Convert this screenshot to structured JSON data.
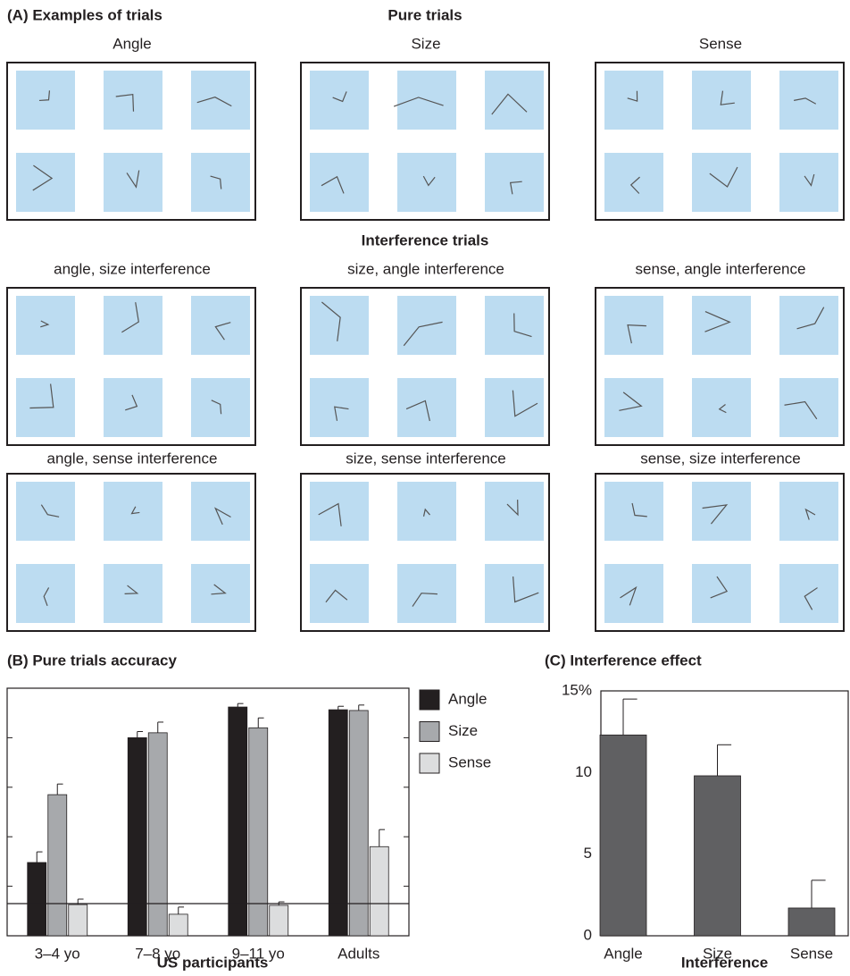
{
  "panel_a": {
    "title": "(A) Examples of trials",
    "pure_heading": "Pure trials",
    "pure_labels": [
      "Angle",
      "Size",
      "Sense"
    ],
    "interference_heading": "Interference trials",
    "interference_labels": [
      "angle, size interference",
      "size, angle interference",
      "sense, angle interference",
      "angle, sense interference",
      "size, sense interference",
      "sense, size interference"
    ]
  },
  "chart_data": [
    {
      "type": "bar",
      "title": "(B) Pure trials accuracy",
      "x_label": "US participants",
      "categories": [
        "3–4 yo",
        "7–8 yo",
        "9–11 yo",
        "Adults"
      ],
      "series": [
        {
          "name": "Angle",
          "color": "#231f20",
          "values": [
            29.6,
            80,
            92.4,
            91.3
          ],
          "errors": [
            4.3,
            2.5,
            1.4,
            1.4
          ]
        },
        {
          "name": "Size",
          "color": "#a7a9ac",
          "values": [
            57,
            82,
            84,
            91
          ],
          "errors": [
            4.3,
            4.3,
            4,
            2.2
          ]
        },
        {
          "name": "Sense",
          "color": "#dcddde",
          "values": [
            12.6,
            8.7,
            12.3,
            36
          ],
          "errors": [
            2.2,
            2.9,
            1.4,
            6.9
          ]
        }
      ],
      "ylim": [
        0,
        100
      ],
      "yticks": [
        0,
        20,
        40,
        60,
        80,
        100
      ],
      "hline": 13,
      "legend": "right"
    },
    {
      "type": "bar",
      "title": "(C) Interference effect",
      "x_label": "Interference",
      "categories": [
        "Angle",
        "Size",
        "Sense"
      ],
      "color": "#606062",
      "values": [
        12.3,
        9.8,
        1.7
      ],
      "errors": [
        2.2,
        1.9,
        1.7
      ],
      "ylim": [
        0,
        15
      ],
      "yticks": [
        0,
        5,
        10,
        {
          "value": 15,
          "label": "15%"
        }
      ]
    }
  ]
}
